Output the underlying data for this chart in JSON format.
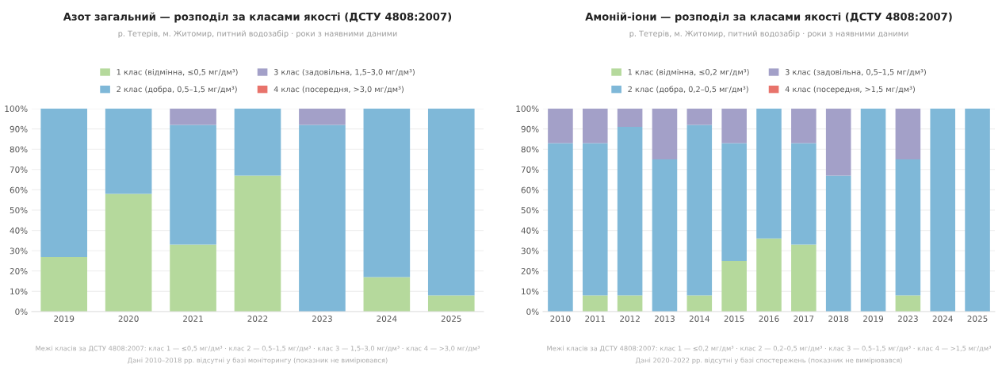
{
  "chart_data": [
    {
      "type": "bar",
      "stacked": true,
      "title": "Азот загальний — розподіл за класами якості (ДСТУ 4808:2007)",
      "subtitle": "р. Тетерів, м. Житомир, питний водозабір · роки з наявними даними",
      "categories": [
        "2019",
        "2020",
        "2021",
        "2022",
        "2023",
        "2024",
        "2025"
      ],
      "series": [
        {
          "name": "1 клас (відмінна, ≤0,5 мг/дм³)",
          "color": "#b5d99c",
          "values": [
            27,
            58,
            33,
            67,
            0,
            17,
            8
          ]
        },
        {
          "name": "2 клас (добра, 0,5–1,5 мг/дм³)",
          "color": "#7fb8d8",
          "values": [
            73,
            42,
            59,
            33,
            92,
            83,
            92
          ]
        },
        {
          "name": "3 клас (задовільна, 1,5–3,0 мг/дм³)",
          "color": "#a3a0c8",
          "values": [
            0,
            0,
            8,
            0,
            8,
            0,
            0
          ]
        },
        {
          "name": "4 клас (посередня, >3,0 мг/дм³)",
          "color": "#e8736b",
          "values": [
            0,
            0,
            0,
            0,
            0,
            0,
            0
          ]
        }
      ],
      "ylim": [
        0,
        100
      ],
      "yticks": [
        {
          "value": 0,
          "label": "0%"
        },
        {
          "value": 10,
          "label": "10%"
        },
        {
          "value": 20,
          "label": "20%"
        },
        {
          "value": 30,
          "label": "30%"
        },
        {
          "value": 40,
          "label": "40%"
        },
        {
          "value": 50,
          "label": "50%"
        },
        {
          "value": 60,
          "label": "60%"
        },
        {
          "value": 70,
          "label": "70%"
        },
        {
          "value": 80,
          "label": "80%"
        },
        {
          "value": 90,
          "label": "90%"
        },
        {
          "value": 100,
          "label": "100%"
        }
      ],
      "grid": "y",
      "legend": "top",
      "annotations": [
        "Межі класів за ДСТУ 4808:2007: клас 1 — ≤0,5 мг/дм³ · клас 2 — 0,5–1,5 мг/дм³ · клас 3 — 1,5–3,0 мг/дм³ · клас 4 — >3,0 мг/дм³",
        "Дані 2010–2018 рр. відсутні у базі моніторингу (показник не вимірювався)"
      ]
    },
    {
      "type": "bar",
      "stacked": true,
      "title": "Амоній-іони — розподіл за класами якості (ДСТУ 4808:2007)",
      "subtitle": "р. Тетерів, м. Житомир, питний водозабір · роки з наявними даними",
      "categories": [
        "2010",
        "2011",
        "2012",
        "2013",
        "2014",
        "2015",
        "2016",
        "2017",
        "2018",
        "2019",
        "2023",
        "2024",
        "2025"
      ],
      "series": [
        {
          "name": "1 клас (відмінна, ≤0,2 мг/дм³)",
          "color": "#b5d99c",
          "values": [
            0,
            8,
            8,
            0,
            8,
            25,
            36,
            33,
            0,
            0,
            8,
            0,
            0
          ]
        },
        {
          "name": "2 клас (добра, 0,2–0,5 мг/дм³)",
          "color": "#7fb8d8",
          "values": [
            83,
            75,
            83,
            75,
            84,
            58,
            64,
            50,
            67,
            100,
            67,
            100,
            100
          ]
        },
        {
          "name": "3 клас (задовільна, 0,5–1,5 мг/дм³)",
          "color": "#a3a0c8",
          "values": [
            17,
            17,
            9,
            25,
            8,
            17,
            0,
            17,
            33,
            0,
            25,
            0,
            0
          ]
        },
        {
          "name": "4 клас (посередня, >1,5 мг/дм³)",
          "color": "#e8736b",
          "values": [
            0,
            0,
            0,
            0,
            0,
            0,
            0,
            0,
            0,
            0,
            0,
            0,
            0
          ]
        }
      ],
      "ylim": [
        0,
        100
      ],
      "yticks": [
        {
          "value": 0,
          "label": "0%"
        },
        {
          "value": 10,
          "label": "10%"
        },
        {
          "value": 20,
          "label": "20%"
        },
        {
          "value": 30,
          "label": "30%"
        },
        {
          "value": 40,
          "label": "40%"
        },
        {
          "value": 50,
          "label": "50%"
        },
        {
          "value": 60,
          "label": "60%"
        },
        {
          "value": 70,
          "label": "70%"
        },
        {
          "value": 80,
          "label": "80%"
        },
        {
          "value": 90,
          "label": "90%"
        },
        {
          "value": 100,
          "label": "100%"
        }
      ],
      "grid": "y",
      "legend": "top",
      "annotations": [
        "Межі класів за ДСТУ 4808:2007: клас 1 — ≤0,2 мг/дм³ · клас 2 — 0,2–0,5 мг/дм³ · клас 3 — 0,5–1,5 мг/дм³ · клас 4 — >1,5 мг/дм³",
        "Дані 2020–2022 рр. відсутні у базі спостережень (показник не вимірювався)"
      ]
    }
  ]
}
